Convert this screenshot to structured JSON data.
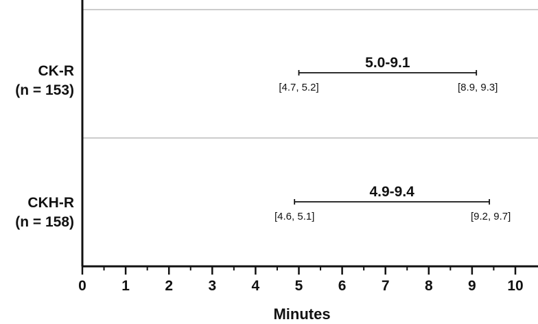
{
  "chart_data": {
    "type": "range",
    "xlabel": "Minutes",
    "xlim": [
      0,
      10.5
    ],
    "xticks": [
      0,
      1,
      2,
      3,
      4,
      5,
      6,
      7,
      8,
      9,
      10
    ],
    "grid": "horizontal separators between categories",
    "colors": {
      "axis": "#111111",
      "separator": "#cccccc",
      "range": "#111111"
    },
    "series": [
      {
        "label_line1": "CK-R",
        "label_line2": "(n = 153)",
        "low": 5.0,
        "high": 9.1,
        "range_label": "5.0-9.1",
        "low_ci_label": "[4.7, 5.2]",
        "high_ci_label": "[8.9, 9.3]"
      },
      {
        "label_line1": "CKH-R",
        "label_line2": "(n = 158)",
        "low": 4.9,
        "high": 9.4,
        "range_label": "4.9-9.4",
        "low_ci_label": "[4.6, 5.1]",
        "high_ci_label": "[9.2, 9.7]"
      }
    ]
  }
}
